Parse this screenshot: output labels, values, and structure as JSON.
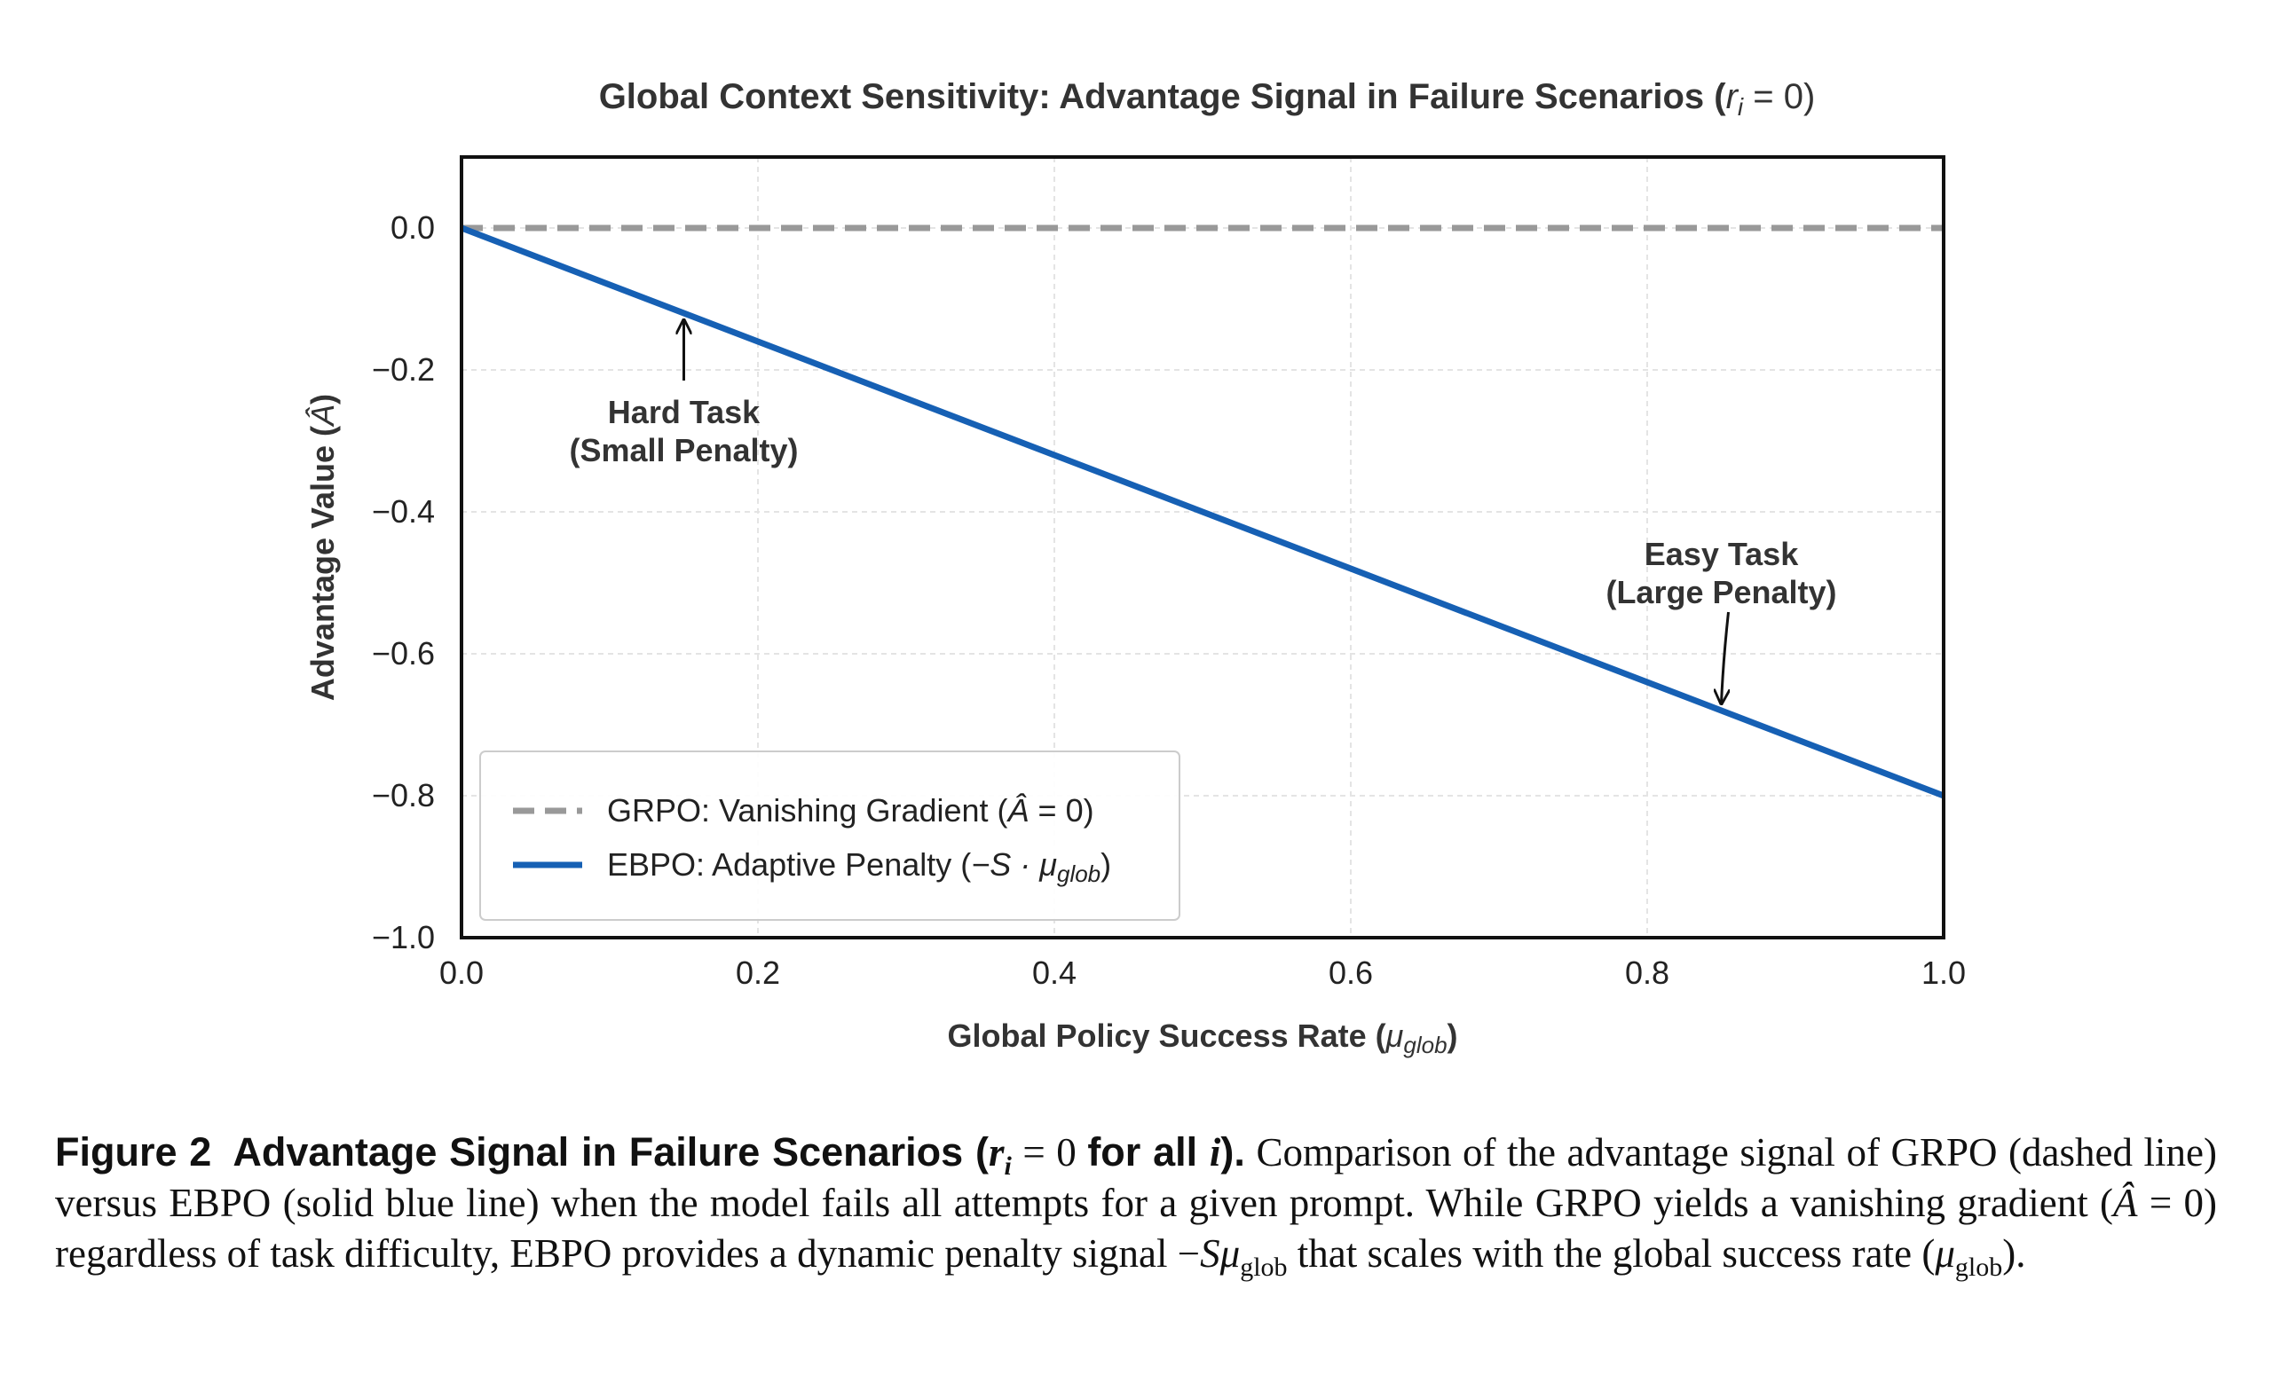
{
  "chart_data": {
    "type": "line",
    "title_main": "Global Context Sensitivity: Advantage Signal in Failure Scenarios (",
    "title_math": "r",
    "title_sub": "i",
    "title_tail": " = 0)",
    "xlabel_main": "Global Policy Success Rate (",
    "xlabel_math": "μ",
    "xlabel_sub": "glob",
    "xlabel_tail": ")",
    "ylabel_main": "Advantage Value (",
    "ylabel_math": "Â",
    "ylabel_tail": ")",
    "xlim": [
      0.0,
      1.0
    ],
    "ylim": [
      -1.0,
      0.1
    ],
    "xticks": [
      0.0,
      0.2,
      0.4,
      0.6,
      0.8,
      1.0
    ],
    "xtick_labels": [
      "0.0",
      "0.2",
      "0.4",
      "0.6",
      "0.8",
      "1.0"
    ],
    "yticks": [
      0.0,
      -0.2,
      -0.4,
      -0.6,
      -0.8,
      -1.0
    ],
    "ytick_labels": [
      "0.0",
      "−0.2",
      "−0.4",
      "−0.6",
      "−0.8",
      "−1.0"
    ],
    "grid": true,
    "series": [
      {
        "name": "GRPO: Vanishing Gradient (Â = 0)",
        "legend_main": "GRPO: Vanishing Gradient (",
        "legend_math": "Â",
        "legend_tail": " = 0)",
        "style": "dashed",
        "color": "#999999",
        "x": [
          0.0,
          1.0
        ],
        "y": [
          0.0,
          0.0
        ]
      },
      {
        "name": "EBPO: Adaptive Penalty (−S · μglob)",
        "legend_main": "EBPO: Adaptive Penalty (",
        "legend_math": "−S · μ",
        "legend_sub": "glob",
        "legend_tail": ")",
        "style": "solid",
        "color": "#1660b4",
        "x": [
          0.0,
          1.0
        ],
        "y": [
          0.0,
          -0.8
        ]
      }
    ],
    "legend_position": "lower-left",
    "annotations": [
      {
        "lines": [
          "Hard Task",
          "(Small Penalty)"
        ],
        "point": [
          0.15,
          -0.12
        ],
        "text_at": [
          0.15,
          -0.26
        ]
      },
      {
        "lines": [
          "Easy Task",
          "(Large Penalty)"
        ],
        "point": [
          0.85,
          -0.68
        ],
        "text_at": [
          0.85,
          -0.46
        ]
      }
    ]
  },
  "caption": {
    "label": "Figure 2",
    "title_a": "Advantage Signal in Failure Scenarios (",
    "title_math": "r",
    "title_sub": "i",
    "title_mid": " = 0 ",
    "title_b": "for all ",
    "title_math2": "i",
    "title_c": ").",
    "body_1": " Comparison of the advantage signal of GRPO (dashed line) versus EBPO (solid blue line) when the model fails all attempts for a given prompt. While GRPO yields a vanishing gradient (",
    "math_1": "Â",
    "body_2": " = 0) regardless of task difficulty, EBPO provides a dynamic penalty signal −",
    "math_2": "Sμ",
    "sub_2": "glob",
    "body_3": " that scales with the global success rate (",
    "math_3": "μ",
    "sub_3": "glob",
    "body_4": ")."
  }
}
